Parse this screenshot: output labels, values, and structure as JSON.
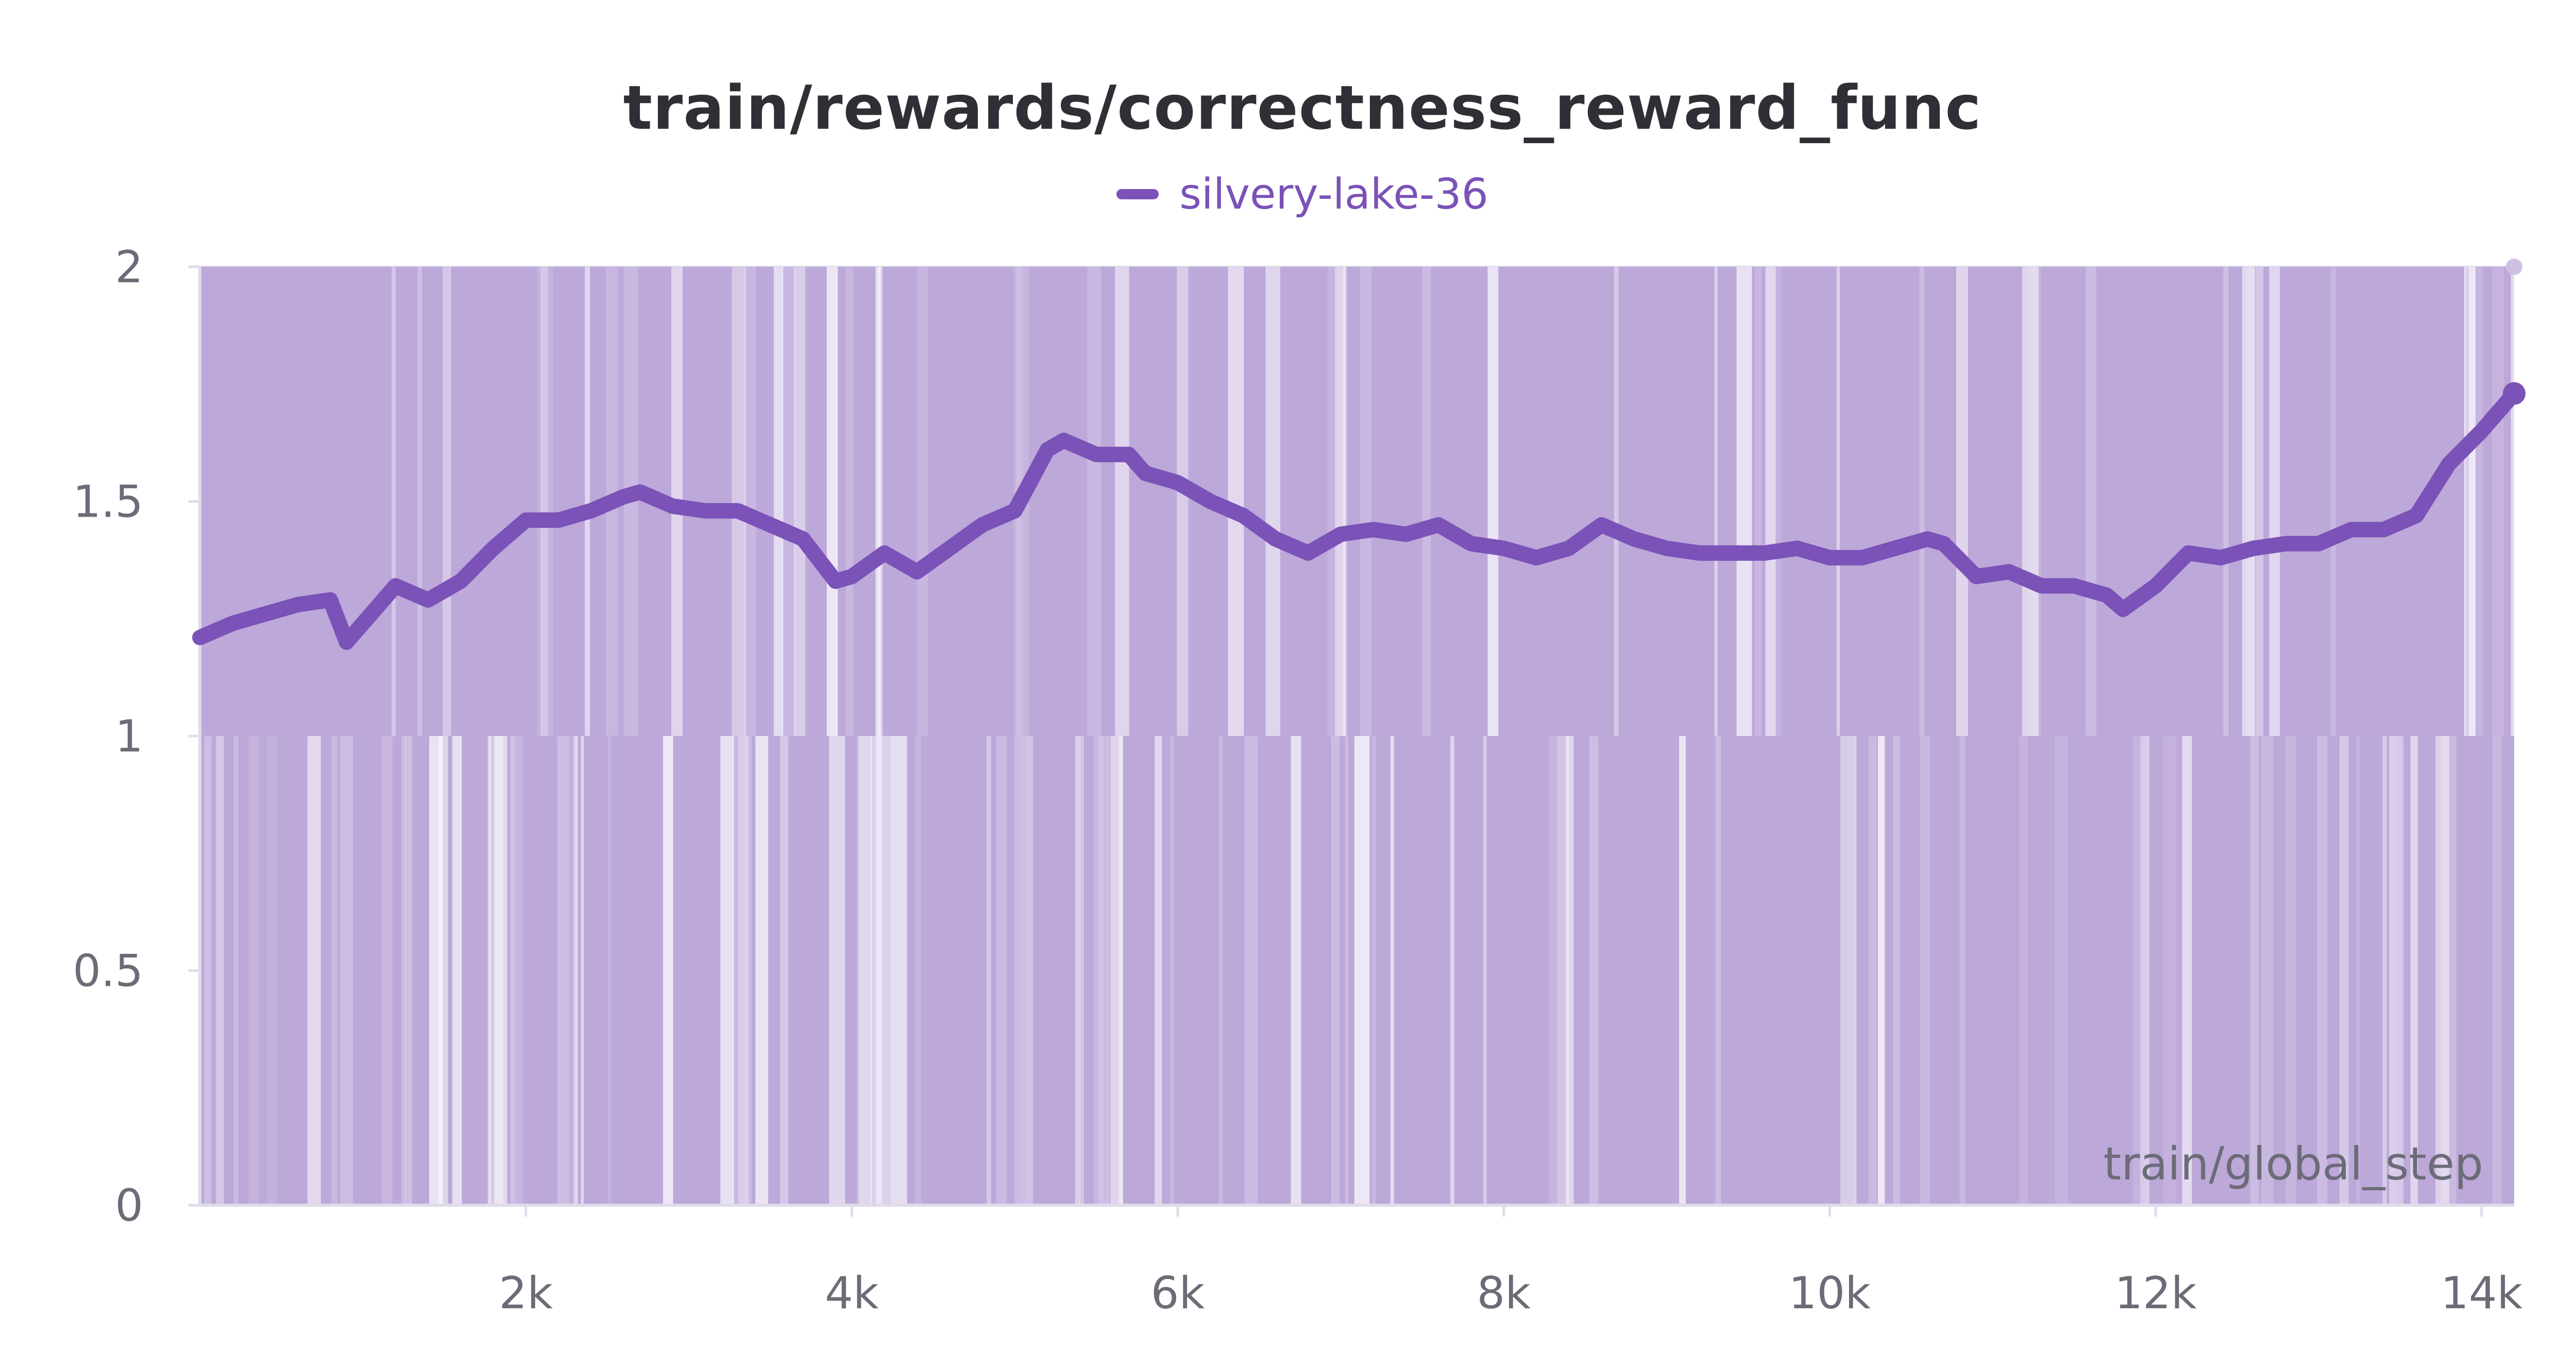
{
  "chart_data": {
    "type": "line",
    "title": "train/rewards/correctness_reward_func",
    "xlabel": "train/global_step",
    "ylabel": "",
    "xlim": [
      0,
      14200
    ],
    "ylim": [
      0,
      2
    ],
    "x_ticks": [
      2000,
      4000,
      6000,
      8000,
      10000,
      12000,
      14000
    ],
    "x_tick_labels": [
      "2k",
      "4k",
      "6k",
      "8k",
      "10k",
      "12k",
      "14k"
    ],
    "y_ticks": [
      0,
      0.5,
      1,
      1.5,
      2
    ],
    "y_tick_labels": [
      "0",
      "0.5",
      "1",
      "1.5",
      "2"
    ],
    "grid": true,
    "legend": "top-center",
    "colors": {
      "series": "#7a52b8",
      "band": "#bca8d9",
      "band_light": "#d3c5e7",
      "grid": "#dedcea",
      "axis": "#dedcea"
    },
    "series": [
      {
        "name": "silvery-lake-36",
        "raw_range": {
          "min": 0,
          "max": 2
        },
        "smoothed": {
          "x": [
            0,
            200,
            400,
            600,
            800,
            900,
            1100,
            1200,
            1400,
            1600,
            1800,
            2000,
            2200,
            2400,
            2600,
            2700,
            2900,
            3100,
            3300,
            3500,
            3700,
            3900,
            4000,
            4200,
            4400,
            4600,
            4800,
            5000,
            5200,
            5300,
            5500,
            5700,
            5800,
            6000,
            6200,
            6400,
            6600,
            6800,
            7000,
            7200,
            7400,
            7600,
            7800,
            8000,
            8200,
            8400,
            8600,
            8800,
            9000,
            9200,
            9400,
            9600,
            9800,
            10000,
            10200,
            10400,
            10600,
            10700,
            10900,
            11100,
            11300,
            11500,
            11700,
            11800,
            12000,
            12200,
            12400,
            12600,
            12800,
            13000,
            13200,
            13400,
            13600,
            13800,
            14000,
            14200
          ],
          "y": [
            1.21,
            1.24,
            1.26,
            1.28,
            1.29,
            1.2,
            1.28,
            1.32,
            1.29,
            1.33,
            1.4,
            1.46,
            1.46,
            1.48,
            1.51,
            1.52,
            1.49,
            1.48,
            1.48,
            1.45,
            1.42,
            1.33,
            1.34,
            1.39,
            1.35,
            1.4,
            1.45,
            1.48,
            1.61,
            1.63,
            1.6,
            1.6,
            1.56,
            1.54,
            1.5,
            1.47,
            1.42,
            1.39,
            1.43,
            1.44,
            1.43,
            1.45,
            1.41,
            1.4,
            1.38,
            1.4,
            1.45,
            1.42,
            1.4,
            1.39,
            1.39,
            1.39,
            1.4,
            1.38,
            1.38,
            1.4,
            1.42,
            1.41,
            1.34,
            1.35,
            1.32,
            1.32,
            1.3,
            1.27,
            1.32,
            1.39,
            1.38,
            1.4,
            1.41,
            1.41,
            1.44,
            1.44,
            1.47,
            1.58,
            1.65,
            1.73
          ]
        }
      }
    ]
  }
}
